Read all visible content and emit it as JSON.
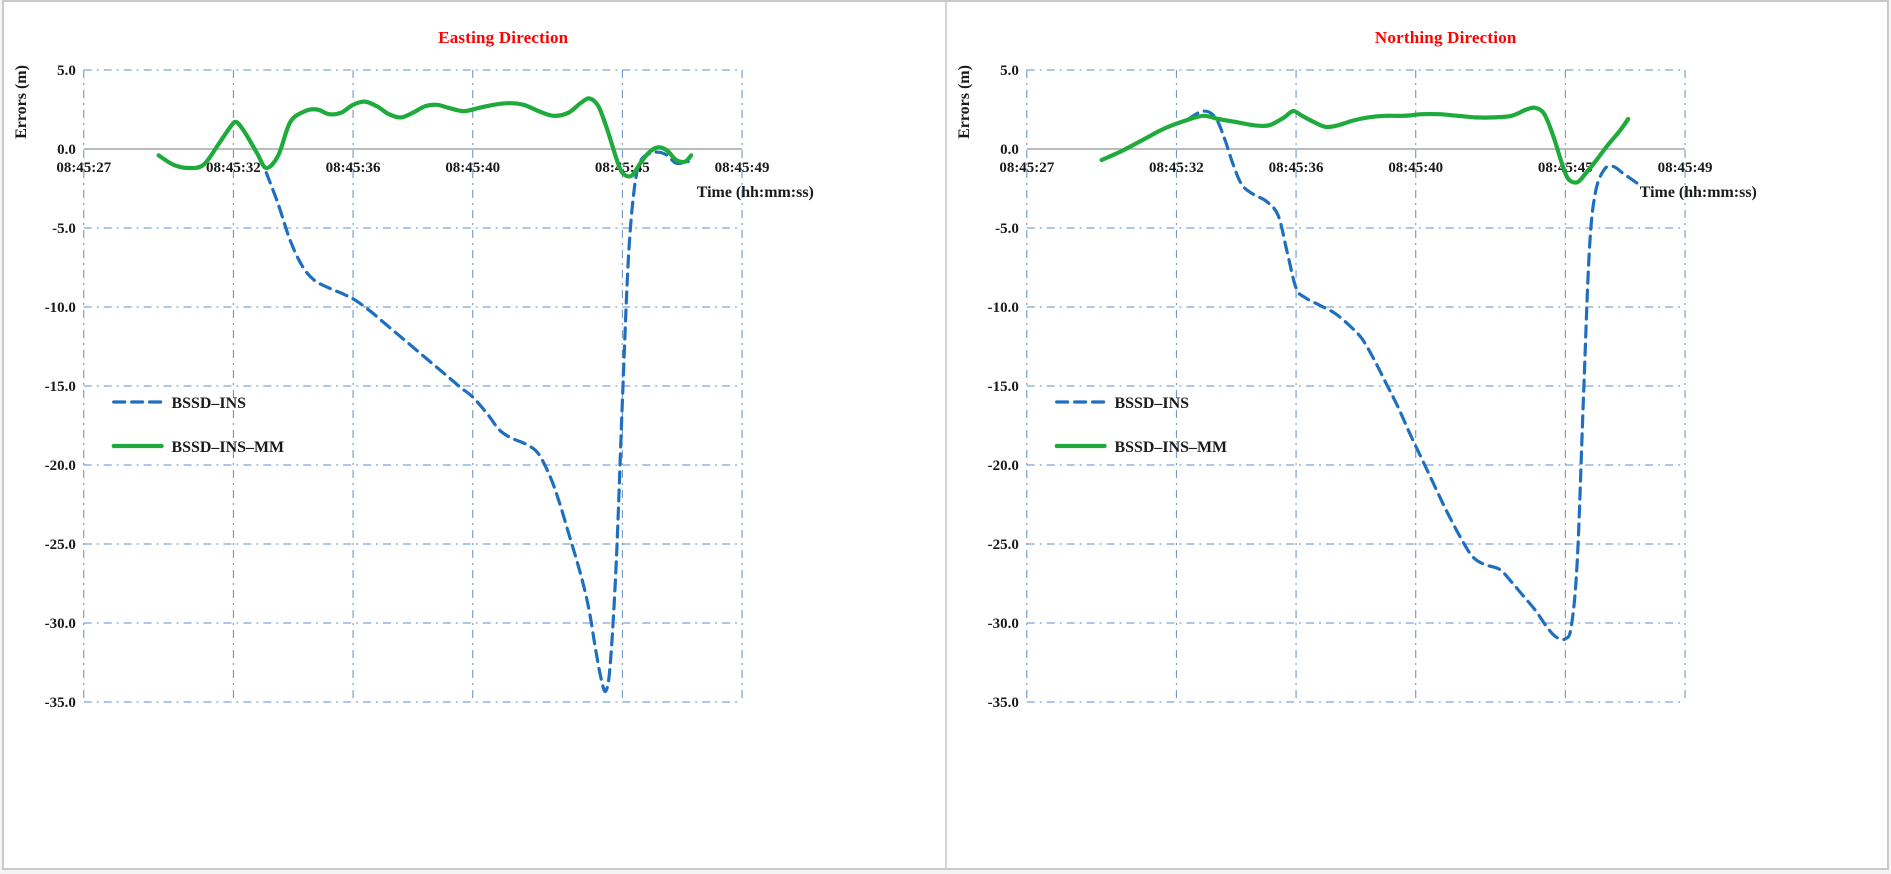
{
  "figure": {
    "background": "#ffffff",
    "border_color": "#c9c9c9",
    "text_color": "#1a1a1a"
  },
  "chart_data": [
    {
      "type": "line",
      "title": "Easting Direction",
      "title_color": "#ff0000",
      "xlabel": "Time (hh:mm:ss)",
      "ylabel": "Errors  (m)",
      "grid": true,
      "grid_color": "#4f81bd",
      "axis_color": "#a6a6a6",
      "legend_position": "left-middle",
      "xlim": [
        27,
        49
      ],
      "ylim": [
        -35,
        5
      ],
      "x_ticks": [
        {
          "t": 27,
          "label": "08:45:27"
        },
        {
          "t": 32,
          "label": "08:45:32"
        },
        {
          "t": 36,
          "label": "08:45:36"
        },
        {
          "t": 40,
          "label": "08:45:40"
        },
        {
          "t": 45,
          "label": "08:45:45"
        },
        {
          "t": 49,
          "label": "08:45:49"
        }
      ],
      "y_ticks": [
        {
          "v": 5,
          "label": "5.0"
        },
        {
          "v": 0,
          "label": "0.0"
        },
        {
          "v": -5,
          "label": "-5.0"
        },
        {
          "v": -10,
          "label": "-10.0"
        },
        {
          "v": -15,
          "label": "-15.0"
        },
        {
          "v": -20,
          "label": "-20.0"
        },
        {
          "v": -25,
          "label": "-25.0"
        },
        {
          "v": -30,
          "label": "-30.0"
        },
        {
          "v": -35,
          "label": "-35.0"
        }
      ],
      "series": [
        {
          "name": "BSSD–INS",
          "color": "#1f6fc0",
          "dash": true,
          "points": [
            [
              33.1,
              -1.5
            ],
            [
              33.5,
              -3.5
            ],
            [
              33.9,
              -5.8
            ],
            [
              34.3,
              -7.4
            ],
            [
              34.7,
              -8.3
            ],
            [
              35.2,
              -8.8
            ],
            [
              35.7,
              -9.2
            ],
            [
              36.1,
              -9.6
            ],
            [
              36.6,
              -10.3
            ],
            [
              37.1,
              -11.1
            ],
            [
              37.6,
              -11.9
            ],
            [
              38.1,
              -12.7
            ],
            [
              38.6,
              -13.5
            ],
            [
              39.1,
              -14.3
            ],
            [
              39.6,
              -15.1
            ],
            [
              40.0,
              -15.7
            ],
            [
              40.5,
              -16.8
            ],
            [
              40.9,
              -17.8
            ],
            [
              41.3,
              -18.3
            ],
            [
              41.8,
              -18.7
            ],
            [
              42.2,
              -19.3
            ],
            [
              42.6,
              -20.8
            ],
            [
              42.9,
              -22.4
            ],
            [
              43.2,
              -24.3
            ],
            [
              43.5,
              -26.2
            ],
            [
              43.7,
              -27.6
            ],
            [
              43.9,
              -29.3
            ],
            [
              44.1,
              -31.6
            ],
            [
              44.3,
              -33.6
            ],
            [
              44.45,
              -34.3
            ],
            [
              44.6,
              -32.5
            ],
            [
              44.8,
              -26.0
            ],
            [
              45.0,
              -16.0
            ],
            [
              45.2,
              -7.0
            ],
            [
              45.4,
              -2.5
            ],
            [
              45.6,
              -0.8
            ],
            [
              45.9,
              -0.3
            ],
            [
              46.2,
              -0.2
            ],
            [
              46.5,
              -0.4
            ],
            [
              46.8,
              -0.9
            ],
            [
              47.2,
              -0.8
            ]
          ]
        },
        {
          "name": "BSSD–INS–MM",
          "color": "#1faa3c",
          "dash": false,
          "points": [
            [
              29.5,
              -0.4
            ],
            [
              30.0,
              -1.0
            ],
            [
              30.5,
              -1.2
            ],
            [
              31.0,
              -1.0
            ],
            [
              31.5,
              0.3
            ],
            [
              31.9,
              1.4
            ],
            [
              32.1,
              1.7
            ],
            [
              32.4,
              1.0
            ],
            [
              32.8,
              -0.3
            ],
            [
              33.1,
              -1.2
            ],
            [
              33.5,
              -0.4
            ],
            [
              33.9,
              1.7
            ],
            [
              34.4,
              2.4
            ],
            [
              34.8,
              2.5
            ],
            [
              35.2,
              2.2
            ],
            [
              35.6,
              2.3
            ],
            [
              36.0,
              2.8
            ],
            [
              36.4,
              3.0
            ],
            [
              36.8,
              2.7
            ],
            [
              37.2,
              2.2
            ],
            [
              37.6,
              2.0
            ],
            [
              38.0,
              2.3
            ],
            [
              38.4,
              2.7
            ],
            [
              38.8,
              2.8
            ],
            [
              39.2,
              2.6
            ],
            [
              39.7,
              2.4
            ],
            [
              40.2,
              2.6
            ],
            [
              40.7,
              2.8
            ],
            [
              41.2,
              2.9
            ],
            [
              41.7,
              2.8
            ],
            [
              42.2,
              2.4
            ],
            [
              42.7,
              2.1
            ],
            [
              43.2,
              2.3
            ],
            [
              43.6,
              2.9
            ],
            [
              43.9,
              3.2
            ],
            [
              44.2,
              2.7
            ],
            [
              44.5,
              1.2
            ],
            [
              44.8,
              -0.6
            ],
            [
              45.0,
              -1.5
            ],
            [
              45.3,
              -1.7
            ],
            [
              45.6,
              -0.9
            ],
            [
              45.9,
              -0.2
            ],
            [
              46.2,
              0.1
            ],
            [
              46.5,
              -0.1
            ],
            [
              46.8,
              -0.7
            ],
            [
              47.1,
              -0.8
            ],
            [
              47.3,
              -0.4
            ]
          ]
        }
      ]
    },
    {
      "type": "line",
      "title": "Northing Direction",
      "title_color": "#ff0000",
      "xlabel": "Time (hh:mm:ss)",
      "ylabel": "Errors  (m)",
      "grid": true,
      "grid_color": "#4f81bd",
      "axis_color": "#a6a6a6",
      "legend_position": "left-middle",
      "xlim": [
        27,
        49
      ],
      "ylim": [
        -35,
        5
      ],
      "x_ticks": [
        {
          "t": 27,
          "label": "08:45:27"
        },
        {
          "t": 32,
          "label": "08:45:32"
        },
        {
          "t": 36,
          "label": "08:45:36"
        },
        {
          "t": 40,
          "label": "08:45:40"
        },
        {
          "t": 45,
          "label": "08:45:45"
        },
        {
          "t": 49,
          "label": "08:45:49"
        }
      ],
      "y_ticks": [
        {
          "v": 5,
          "label": "5.0"
        },
        {
          "v": 0,
          "label": "0.0"
        },
        {
          "v": -5,
          "label": "-5.0"
        },
        {
          "v": -10,
          "label": "-10.0"
        },
        {
          "v": -15,
          "label": "-15.0"
        },
        {
          "v": -20,
          "label": "-20.0"
        },
        {
          "v": -25,
          "label": "-25.0"
        },
        {
          "v": -30,
          "label": "-30.0"
        },
        {
          "v": -35,
          "label": "-35.0"
        }
      ],
      "series": [
        {
          "name": "BSSD–INS",
          "color": "#1f6fc0",
          "dash": true,
          "points": [
            [
              32.4,
              1.9
            ],
            [
              32.9,
              2.4
            ],
            [
              33.3,
              2.0
            ],
            [
              33.6,
              0.7
            ],
            [
              33.9,
              -1.0
            ],
            [
              34.2,
              -2.3
            ],
            [
              34.6,
              -2.9
            ],
            [
              35.0,
              -3.3
            ],
            [
              35.4,
              -4.2
            ],
            [
              35.7,
              -6.5
            ],
            [
              36.0,
              -8.8
            ],
            [
              36.3,
              -9.4
            ],
            [
              36.8,
              -9.9
            ],
            [
              37.3,
              -10.4
            ],
            [
              37.8,
              -11.2
            ],
            [
              38.2,
              -12.0
            ],
            [
              38.6,
              -13.3
            ],
            [
              39.0,
              -14.8
            ],
            [
              39.4,
              -16.3
            ],
            [
              39.8,
              -18.0
            ],
            [
              40.2,
              -19.6
            ],
            [
              40.6,
              -21.2
            ],
            [
              41.0,
              -22.8
            ],
            [
              41.5,
              -24.6
            ],
            [
              41.9,
              -25.8
            ],
            [
              42.3,
              -26.3
            ],
            [
              42.8,
              -26.6
            ],
            [
              43.2,
              -27.4
            ],
            [
              43.6,
              -28.3
            ],
            [
              44.0,
              -29.2
            ],
            [
              44.4,
              -30.3
            ],
            [
              44.7,
              -30.9
            ],
            [
              45.0,
              -31.0
            ],
            [
              45.2,
              -30.2
            ],
            [
              45.4,
              -26.0
            ],
            [
              45.6,
              -16.0
            ],
            [
              45.8,
              -6.5
            ],
            [
              46.0,
              -2.8
            ],
            [
              46.3,
              -1.3
            ],
            [
              46.6,
              -1.1
            ],
            [
              46.9,
              -1.5
            ],
            [
              47.2,
              -1.9
            ],
            [
              47.5,
              -2.3
            ]
          ]
        },
        {
          "name": "BSSD–INS–MM",
          "color": "#1faa3c",
          "dash": false,
          "points": [
            [
              29.5,
              -0.7
            ],
            [
              30.2,
              -0.1
            ],
            [
              30.9,
              0.6
            ],
            [
              31.6,
              1.3
            ],
            [
              32.3,
              1.8
            ],
            [
              32.9,
              2.1
            ],
            [
              33.4,
              1.9
            ],
            [
              34.0,
              1.7
            ],
            [
              34.6,
              1.5
            ],
            [
              35.1,
              1.5
            ],
            [
              35.6,
              2.0
            ],
            [
              35.9,
              2.4
            ],
            [
              36.2,
              2.1
            ],
            [
              36.6,
              1.7
            ],
            [
              37.0,
              1.4
            ],
            [
              37.4,
              1.5
            ],
            [
              37.9,
              1.8
            ],
            [
              38.4,
              2.0
            ],
            [
              39.0,
              2.1
            ],
            [
              39.6,
              2.1
            ],
            [
              40.2,
              2.2
            ],
            [
              40.8,
              2.2
            ],
            [
              41.4,
              2.1
            ],
            [
              42.0,
              2.0
            ],
            [
              42.6,
              2.0
            ],
            [
              43.2,
              2.1
            ],
            [
              43.7,
              2.5
            ],
            [
              44.0,
              2.6
            ],
            [
              44.3,
              2.2
            ],
            [
              44.6,
              0.8
            ],
            [
              44.9,
              -1.0
            ],
            [
              45.1,
              -1.9
            ],
            [
              45.4,
              -2.1
            ],
            [
              45.7,
              -1.5
            ],
            [
              46.0,
              -0.8
            ],
            [
              46.4,
              0.2
            ],
            [
              46.8,
              1.1
            ],
            [
              47.1,
              1.9
            ]
          ]
        }
      ]
    }
  ]
}
